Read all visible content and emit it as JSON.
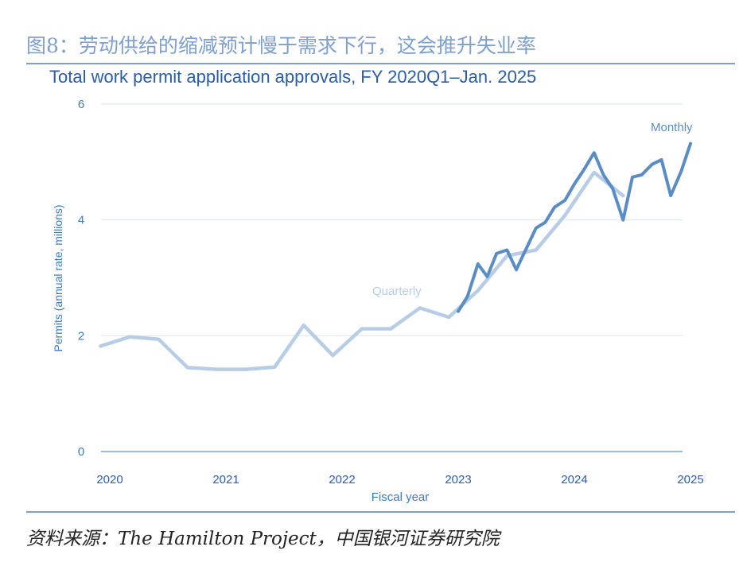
{
  "figure_title": "图8：劳动供给的缩减预计慢于需求下行，这会推升失业率",
  "source_note": "资料来源：The Hamilton Project，中国银河证券研究院",
  "colors": {
    "figure_title": "#7f9fcf",
    "chart_title": "#2a5ca8",
    "axis_text": "#3a7ac8",
    "quarterly": "#b7cde6",
    "monthly": "#5a8cc6",
    "grid": "#dfe7f1"
  },
  "chart_data": {
    "type": "line",
    "title": "Total work permit application approvals, FY 2020Q1–Jan. 2025",
    "xlabel": "Fiscal year",
    "ylabel": "Permits (annual rate, millions)",
    "xlim": [
      2020,
      2025
    ],
    "ylim": [
      0,
      6
    ],
    "x_ticks": [
      "2020",
      "2021",
      "2022",
      "2023",
      "2024",
      "2025"
    ],
    "y_ticks": [
      "0",
      "2",
      "4",
      "6"
    ],
    "grid": true,
    "series": [
      {
        "name": "Quarterly",
        "x": [
          2019.92,
          2020.17,
          2020.42,
          2020.67,
          2020.92,
          2021.17,
          2021.42,
          2021.67,
          2021.92,
          2022.17,
          2022.42,
          2022.67,
          2022.92,
          2023.17,
          2023.42,
          2023.67,
          2023.92,
          2024.17,
          2024.42
        ],
        "values": [
          1.82,
          1.98,
          1.94,
          1.45,
          1.42,
          1.42,
          1.46,
          2.18,
          1.66,
          2.12,
          2.12,
          2.48,
          2.32,
          2.78,
          3.38,
          3.48,
          4.08,
          4.82,
          4.42
        ]
      },
      {
        "name": "Monthly",
        "x": [
          2023.0,
          2023.08,
          2023.17,
          2023.25,
          2023.33,
          2023.42,
          2023.5,
          2023.58,
          2023.67,
          2023.75,
          2023.83,
          2023.92,
          2024.0,
          2024.08,
          2024.17,
          2024.25,
          2024.33,
          2024.42,
          2024.5,
          2024.58,
          2024.67,
          2024.75,
          2024.83,
          2024.92,
          2025.0
        ],
        "values": [
          2.42,
          2.68,
          3.24,
          3.02,
          3.42,
          3.48,
          3.14,
          3.48,
          3.86,
          3.96,
          4.22,
          4.34,
          4.62,
          4.86,
          5.16,
          4.78,
          4.54,
          4.0,
          4.74,
          4.78,
          4.96,
          5.04,
          4.42,
          4.84,
          5.32
        ]
      }
    ],
    "annotations": [
      "Quarterly",
      "Monthly"
    ]
  }
}
